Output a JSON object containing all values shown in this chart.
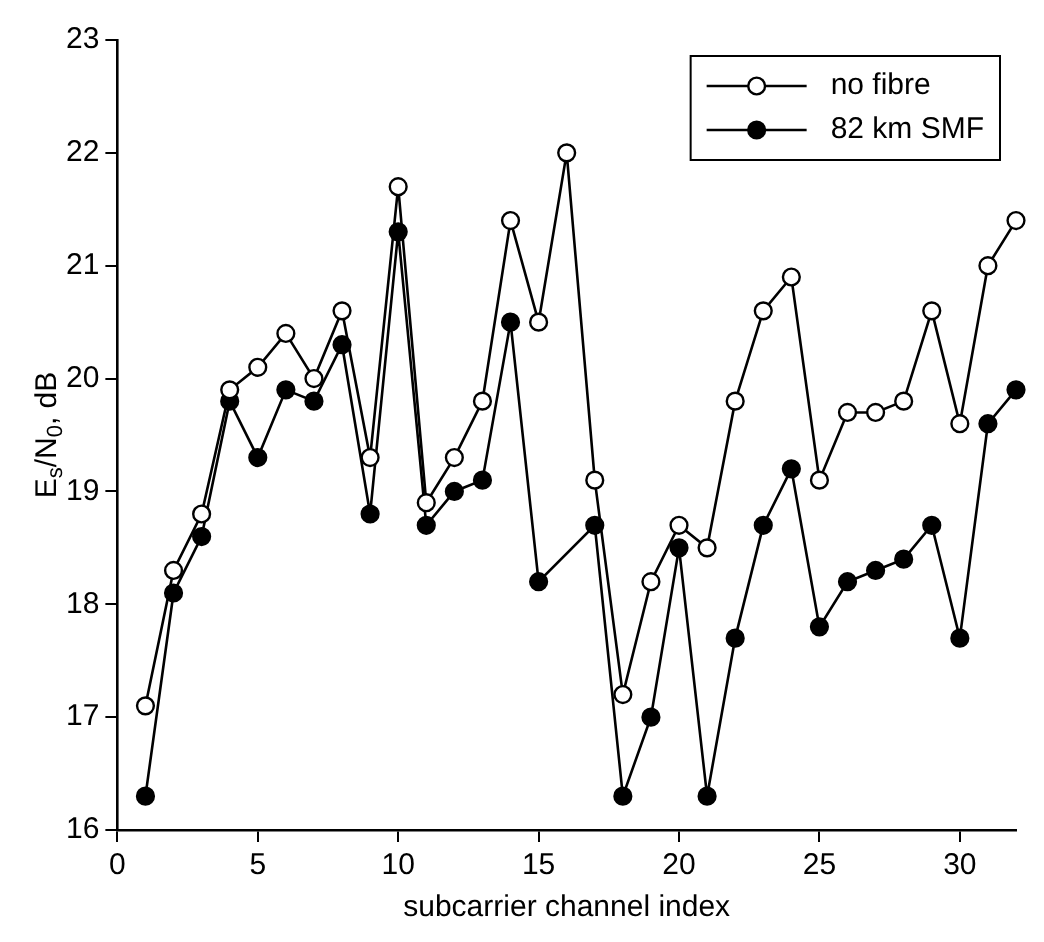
{
  "chart_data": {
    "type": "line",
    "xlabel": "subcarrier channel index",
    "ylabel": "E$_{s}$/N$_{0}$, dB",
    "marker": "circle",
    "x": [
      1,
      2,
      3,
      4,
      5,
      6,
      7,
      8,
      9,
      10,
      11,
      12,
      13,
      14,
      15,
      16,
      17,
      18,
      19,
      20,
      21,
      22,
      23,
      24,
      25,
      26,
      27,
      28,
      29,
      30,
      31,
      32
    ],
    "series": [
      {
        "name": "no fibre",
        "color": "#000000",
        "values": [
          17.1,
          18.3,
          18.8,
          19.9,
          20.1,
          20.4,
          20.0,
          20.6,
          19.3,
          21.7,
          18.9,
          19.3,
          19.8,
          21.4,
          20.5,
          22.0,
          19.1,
          17.2,
          18.2,
          18.7,
          18.5,
          19.8,
          20.6,
          20.9,
          19.1,
          19.7,
          19.7,
          19.8,
          20.6,
          19.6,
          21.0,
          21.4
        ]
      },
      {
        "name": "82 km SMF",
        "color": "#000000",
        "values": [
          16.3,
          18.1,
          18.6,
          19.8,
          19.3,
          19.9,
          19.8,
          20.3,
          18.8,
          21.3,
          18.7,
          19.0,
          19.1,
          20.5,
          18.2,
          null,
          18.7,
          16.3,
          17.0,
          18.5,
          16.3,
          17.7,
          18.7,
          19.2,
          17.8,
          18.2,
          18.3,
          18.4,
          18.7,
          17.7,
          19.6,
          19.9
        ]
      }
    ],
    "xlim": [
      0,
      32
    ],
    "xticks": [
      0,
      5,
      10,
      15,
      20,
      25,
      30
    ],
    "ylim": [
      16,
      23
    ],
    "yticks": [
      16,
      17,
      18,
      19,
      20,
      21,
      22,
      23
    ],
    "legend": "top right",
    "grid": false
  }
}
